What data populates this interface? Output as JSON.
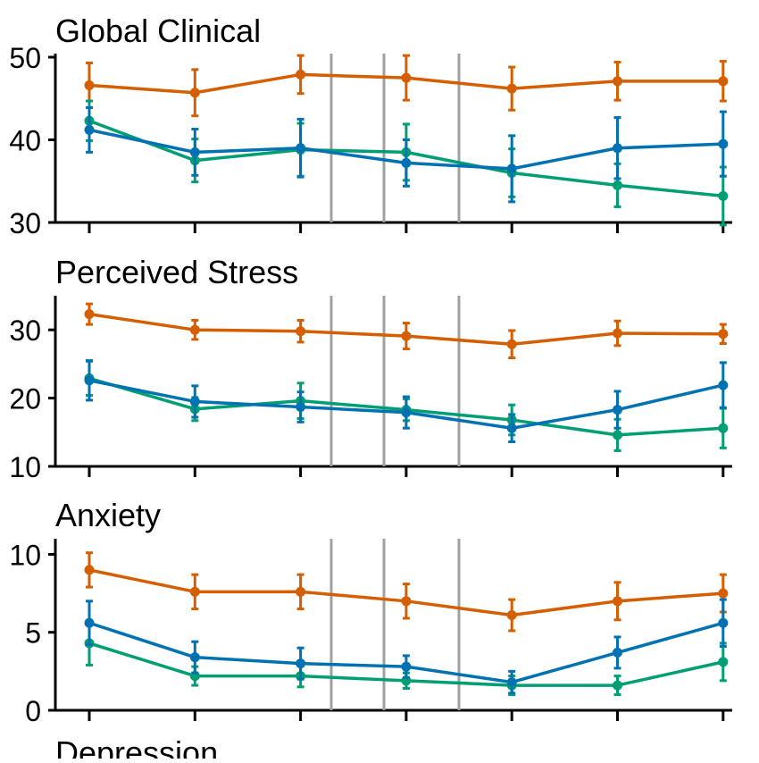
{
  "colors": {
    "orange": "#D55E00",
    "blue": "#0072B2",
    "green": "#009E73",
    "reference_line": "#A0A0A0",
    "axis": "#000000"
  },
  "chart_data": [
    {
      "type": "line",
      "title": "Global Clinical",
      "ylim": [
        30,
        50
      ],
      "yticks": [
        30,
        40,
        50
      ],
      "x": [
        1,
        2,
        3,
        4,
        5,
        6,
        7
      ],
      "reference_lines_x": [
        3.3,
        3.8,
        4.5
      ],
      "series": [
        {
          "color_key": "orange",
          "values": [
            46.6,
            45.7,
            47.9,
            47.5,
            46.2,
            47.1,
            47.1
          ],
          "errors": [
            2.7,
            2.8,
            2.3,
            2.7,
            2.6,
            2.3,
            2.4
          ]
        },
        {
          "color_key": "green",
          "values": [
            42.3,
            37.5,
            38.8,
            38.5,
            36.0,
            34.5,
            33.2
          ],
          "errors": [
            2.4,
            2.6,
            3.2,
            3.4,
            2.9,
            2.6,
            3.5
          ]
        },
        {
          "color_key": "blue",
          "values": [
            41.2,
            38.5,
            39.0,
            37.2,
            36.5,
            39.0,
            39.5
          ],
          "errors": [
            2.7,
            2.8,
            3.5,
            2.8,
            4.0,
            3.7,
            3.9
          ]
        }
      ]
    },
    {
      "type": "line",
      "title": "Perceived Stress",
      "ylim": [
        10,
        35
      ],
      "yticks": [
        10,
        20,
        30
      ],
      "x": [
        1,
        2,
        3,
        4,
        5,
        6,
        7
      ],
      "reference_lines_x": [
        3.3,
        3.8,
        4.5
      ],
      "series": [
        {
          "color_key": "orange",
          "values": [
            32.3,
            30.0,
            29.8,
            29.1,
            27.9,
            29.5,
            29.4
          ],
          "errors": [
            1.5,
            1.4,
            1.6,
            1.9,
            2.0,
            1.8,
            1.4
          ]
        },
        {
          "color_key": "green",
          "values": [
            22.9,
            18.4,
            19.6,
            18.3,
            16.8,
            14.6,
            15.6
          ],
          "errors": [
            2.5,
            1.7,
            2.6,
            1.6,
            2.2,
            2.3,
            2.9
          ]
        },
        {
          "color_key": "blue",
          "values": [
            22.6,
            19.5,
            18.7,
            17.9,
            15.6,
            18.3,
            21.9
          ],
          "errors": [
            2.9,
            2.3,
            2.2,
            2.3,
            2.0,
            2.7,
            3.3
          ]
        }
      ]
    },
    {
      "type": "line",
      "title": "Anxiety",
      "ylim": [
        0,
        11
      ],
      "yticks": [
        0,
        5,
        10
      ],
      "x": [
        1,
        2,
        3,
        4,
        5,
        6,
        7
      ],
      "reference_lines_x": [
        3.3,
        3.8,
        4.5
      ],
      "series": [
        {
          "color_key": "orange",
          "values": [
            9.0,
            7.6,
            7.6,
            7.0,
            6.1,
            7.0,
            7.5
          ],
          "errors": [
            1.1,
            1.1,
            1.1,
            1.1,
            1.0,
            1.2,
            1.2
          ]
        },
        {
          "color_key": "green",
          "values": [
            4.3,
            2.2,
            2.2,
            1.9,
            1.6,
            1.6,
            3.1
          ],
          "errors": [
            1.4,
            0.6,
            0.7,
            0.5,
            0.6,
            0.6,
            1.2
          ]
        },
        {
          "color_key": "blue",
          "values": [
            5.6,
            3.4,
            3.0,
            2.8,
            1.8,
            3.7,
            5.6
          ],
          "errors": [
            1.4,
            1.0,
            1.0,
            0.7,
            0.7,
            1.0,
            1.5
          ]
        }
      ]
    },
    {
      "type": "line",
      "title": "Depression",
      "series": []
    }
  ]
}
